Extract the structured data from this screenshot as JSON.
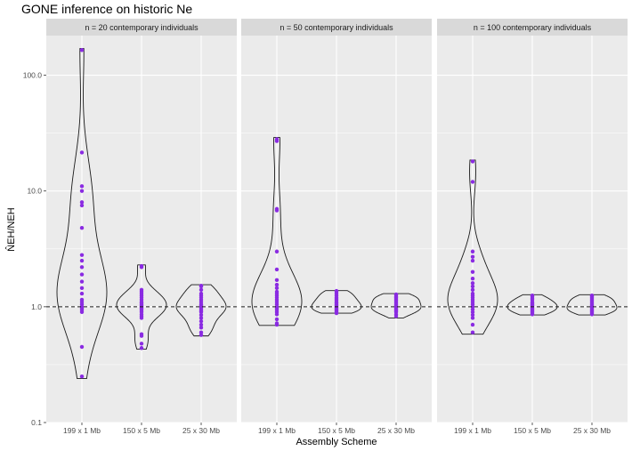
{
  "chart_data": {
    "type": "violin",
    "title": "GONE inference on historic Ne",
    "xlabel": "Assembly Scheme",
    "ylabel": "N̂EH/NEH",
    "y_scale": "log10",
    "ylim": [
      0.1,
      220
    ],
    "y_ticks": [
      0.1,
      1.0,
      10.0,
      100.0
    ],
    "y_tick_labels": [
      "0.1",
      "1.0",
      "10.0",
      "100.0"
    ],
    "reference_line": 1.0,
    "categories": [
      "199 x 1 Mb",
      "150 x 5 Mb",
      "25 x 30 Mb"
    ],
    "point_color": "#8a2be2",
    "panels": [
      {
        "label": "n = 20 contemporary individuals",
        "groups": [
          {
            "category": "199 x 1 Mb",
            "values": [
              165,
              21.5,
              11,
              10,
              8,
              7.5,
              4.8,
              2.8,
              2.5,
              2.2,
              1.9,
              1.65,
              1.45,
              1.3,
              1.15,
              1.1,
              1.05,
              1.0,
              0.97,
              0.94,
              0.9,
              0.45,
              0.25
            ],
            "range": [
              0.24,
              170
            ]
          },
          {
            "category": "150 x 5 Mb",
            "values": [
              2.25,
              2.2,
              1.4,
              1.35,
              1.3,
              1.25,
              1.2,
              1.15,
              1.1,
              1.08,
              1.05,
              1.02,
              1.0,
              0.98,
              0.96,
              0.93,
              0.9,
              0.86,
              0.83,
              0.8,
              0.58,
              0.56,
              0.48,
              0.44
            ],
            "range": [
              0.43,
              2.3
            ]
          },
          {
            "category": "25 x 30 Mb",
            "values": [
              1.52,
              1.5,
              1.4,
              1.3,
              1.25,
              1.2,
              1.15,
              1.1,
              1.05,
              1.02,
              1.0,
              0.98,
              0.95,
              0.92,
              0.9,
              0.85,
              0.8,
              0.75,
              0.7,
              0.66,
              0.6,
              0.57
            ],
            "range": [
              0.56,
              1.55
            ]
          }
        ]
      },
      {
        "label": "n = 50 contemporary individuals",
        "groups": [
          {
            "category": "199 x 1 Mb",
            "values": [
              28,
              27,
              7,
              6.8,
              3,
              2.1,
              1.7,
              1.55,
              1.45,
              1.35,
              1.3,
              1.25,
              1.2,
              1.15,
              1.1,
              1.05,
              1.0,
              0.97,
              0.94,
              0.9,
              0.86,
              0.78,
              0.72,
              0.7
            ],
            "range": [
              0.69,
              29
            ]
          },
          {
            "category": "150 x 5 Mb",
            "values": [
              1.37,
              1.35,
              1.3,
              1.25,
              1.2,
              1.17,
              1.14,
              1.1,
              1.08,
              1.05,
              1.02,
              1.0,
              0.98,
              0.96,
              0.94,
              0.92,
              0.9,
              0.88
            ],
            "range": [
              0.88,
              1.38
            ]
          },
          {
            "category": "25 x 30 Mb",
            "values": [
              1.28,
              1.26,
              1.22,
              1.2,
              1.17,
              1.14,
              1.11,
              1.08,
              1.05,
              1.02,
              1.0,
              0.98,
              0.96,
              0.94,
              0.92,
              0.9,
              0.86,
              0.83
            ],
            "range": [
              0.8,
              1.3
            ]
          }
        ]
      },
      {
        "label": "n = 100 contemporary individuals",
        "groups": [
          {
            "category": "199 x 1 Mb",
            "values": [
              18,
              12,
              3,
              2.7,
              2.5,
              2.0,
              1.75,
              1.6,
              1.5,
              1.4,
              1.3,
              1.25,
              1.2,
              1.15,
              1.1,
              1.05,
              1.0,
              0.95,
              0.9,
              0.85,
              0.8,
              0.7,
              0.6
            ],
            "range": [
              0.58,
              18.5
            ]
          },
          {
            "category": "150 x 5 Mb",
            "values": [
              1.25,
              1.22,
              1.18,
              1.15,
              1.1,
              1.08,
              1.06,
              1.04,
              1.02,
              1.0,
              0.98,
              0.96,
              0.94,
              0.92,
              0.9,
              0.88,
              0.86
            ],
            "range": [
              0.85,
              1.27
            ]
          },
          {
            "category": "25 x 30 Mb",
            "values": [
              1.25,
              1.23,
              1.2,
              1.17,
              1.14,
              1.11,
              1.08,
              1.05,
              1.02,
              1.0,
              0.98,
              0.96,
              0.94,
              0.92,
              0.9,
              0.88,
              0.86
            ],
            "range": [
              0.85,
              1.27
            ]
          }
        ]
      }
    ]
  }
}
